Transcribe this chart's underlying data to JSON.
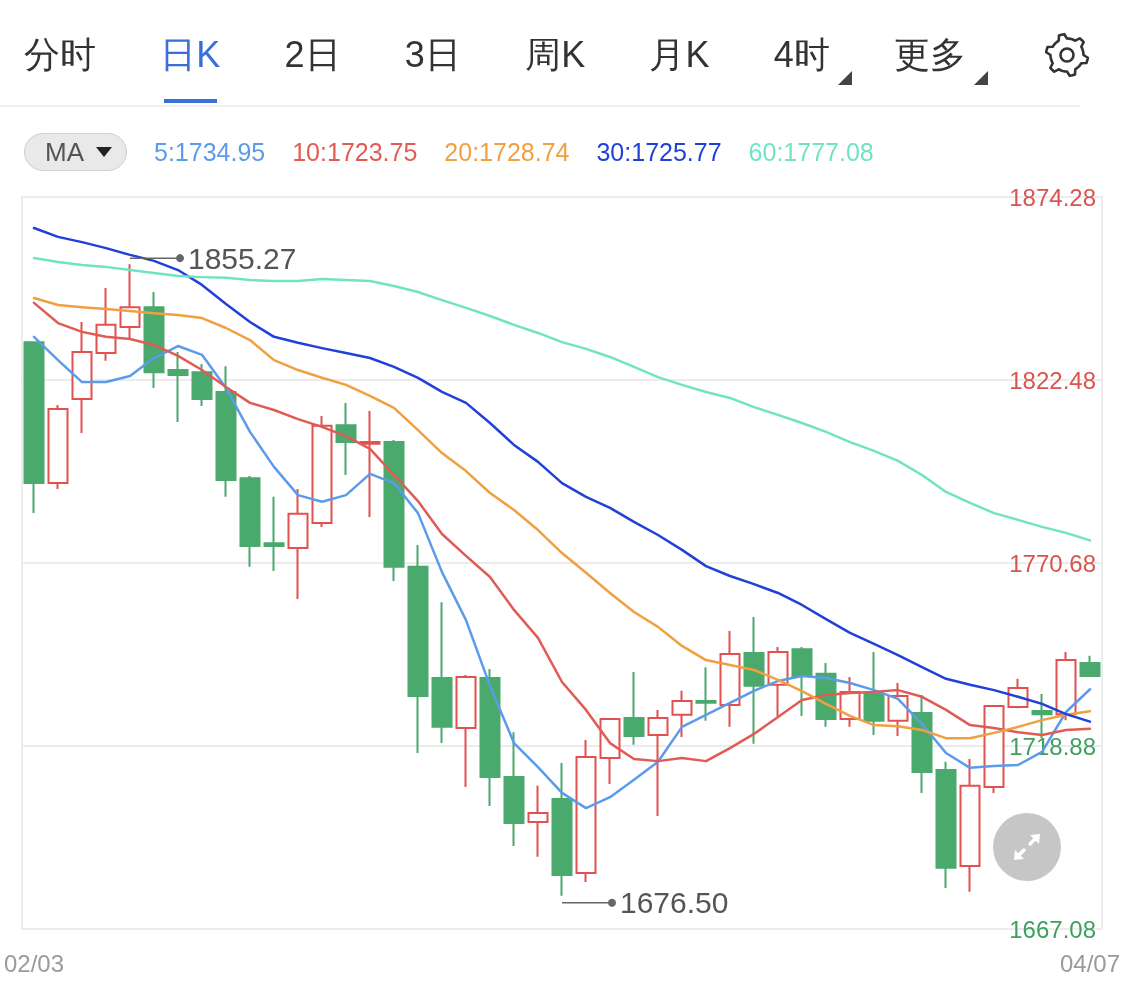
{
  "chart_data": {
    "type": "candlestick",
    "categories": [
      "02/03",
      null,
      null,
      null,
      null,
      null,
      null,
      null,
      null,
      null,
      null,
      null,
      null,
      null,
      null,
      null,
      null,
      null,
      null,
      null,
      null,
      null,
      null,
      null,
      null,
      null,
      null,
      null,
      null,
      null,
      null,
      null,
      null,
      null,
      null,
      null,
      null,
      null,
      null,
      null,
      null,
      null,
      null,
      null,
      "04/07"
    ],
    "ohlc": [
      [
        1833.2,
        1833.2,
        1784.8,
        1793.3
      ],
      [
        1793.3,
        1815.4,
        1791.6,
        1814.3
      ],
      [
        1817.1,
        1838.9,
        1807.5,
        1830.4
      ],
      [
        1830.1,
        1848.5,
        1827.9,
        1838.1
      ],
      [
        1837.5,
        1855.27,
        1834.4,
        1843.1
      ],
      [
        1843.1,
        1847.4,
        1820.2,
        1824.7
      ],
      [
        1825.3,
        1830.4,
        1810.6,
        1823.9
      ],
      [
        1824.7,
        1827.0,
        1815.1,
        1817.1
      ],
      [
        1819.1,
        1826.4,
        1789.4,
        1794.2
      ],
      [
        1794.7,
        1795.3,
        1769.6,
        1775.5
      ],
      [
        1776.3,
        1789.4,
        1768.4,
        1775.5
      ],
      [
        1774.9,
        1791.6,
        1760.5,
        1784.6
      ],
      [
        1782.0,
        1812.3,
        1780.9,
        1809.5
      ],
      [
        1809.7,
        1816.0,
        1795.6,
        1804.9
      ],
      [
        1804.4,
        1813.7,
        1783.7,
        1804.9
      ],
      [
        1804.9,
        1805.5,
        1765.6,
        1769.6
      ],
      [
        1769.6,
        1775.8,
        1716.9,
        1733.0
      ],
      [
        1738.1,
        1759.6,
        1719.7,
        1724.3
      ],
      [
        1724.0,
        1739.0,
        1707.3,
        1738.4
      ],
      [
        1738.1,
        1740.7,
        1701.9,
        1710.1
      ],
      [
        1710.1,
        1722.8,
        1690.6,
        1697.1
      ],
      [
        1697.4,
        1707.6,
        1687.5,
        1699.9
      ],
      [
        1703.9,
        1714.1,
        1676.5,
        1682.4
      ],
      [
        1682.9,
        1720.6,
        1680.4,
        1715.8
      ],
      [
        1715.5,
        1726.8,
        1708.1,
        1726.5
      ],
      [
        1726.8,
        1739.8,
        1719.2,
        1721.7
      ],
      [
        1722.0,
        1729.1,
        1699.1,
        1726.8
      ],
      [
        1727.7,
        1734.5,
        1721.4,
        1731.6
      ],
      [
        1731.6,
        1741.2,
        1726.0,
        1731.1
      ],
      [
        1730.5,
        1751.4,
        1724.3,
        1744.9
      ],
      [
        1745.2,
        1755.4,
        1719.5,
        1735.9
      ],
      [
        1736.2,
        1746.9,
        1727.4,
        1745.5
      ],
      [
        1746.3,
        1746.9,
        1727.4,
        1738.7
      ],
      [
        1739.3,
        1742.4,
        1724.3,
        1726.5
      ],
      [
        1726.5,
        1738.4,
        1724.3,
        1734.2
      ],
      [
        1733.6,
        1745.5,
        1722.0,
        1726.0
      ],
      [
        1726.0,
        1736.7,
        1721.7,
        1733.0
      ],
      [
        1728.2,
        1733.3,
        1705.6,
        1711.5
      ],
      [
        1712.1,
        1714.4,
        1678.7,
        1684.4
      ],
      [
        1684.9,
        1715.2,
        1677.6,
        1707.6
      ],
      [
        1707.3,
        1730.5,
        1705.6,
        1730.2
      ],
      [
        1729.9,
        1737.9,
        1729.6,
        1735.3
      ],
      [
        1728.8,
        1733.6,
        1721.1,
        1727.9
      ],
      [
        1727.9,
        1745.5,
        1726.2,
        1743.2
      ],
      [
        1742.4,
        1744.4,
        1738.4,
        1738.7
      ]
    ],
    "colors": [
      "#4aa96c",
      "#e0514f",
      "#e0514f",
      "#e0514f",
      "#e0514f",
      "#4aa96c",
      "#4aa96c",
      "#4aa96c",
      "#4aa96c",
      "#4aa96c",
      "#4aa96c",
      "#e0514f",
      "#e0514f",
      "#4aa96c",
      "#e0514f",
      "#4aa96c",
      "#4aa96c",
      "#4aa96c",
      "#e0514f",
      "#4aa96c",
      "#4aa96c",
      "#e0514f",
      "#4aa96c",
      "#e0514f",
      "#e0514f",
      "#4aa96c",
      "#e0514f",
      "#e0514f",
      "#4aa96c",
      "#e0514f",
      "#4aa96c",
      "#e0514f",
      "#4aa96c",
      "#4aa96c",
      "#e0514f",
      "#4aa96c",
      "#e0514f",
      "#4aa96c",
      "#4aa96c",
      "#e0514f",
      "#e0514f",
      "#e0514f",
      "#4aa96c",
      "#e0514f",
      "#4aa96c"
    ],
    "series": [
      {
        "type": "line",
        "name": "5:1734.95",
        "color": "#5b9bea",
        "values": [
          1834.7,
          1828.1,
          1821.9,
          1821.9,
          1823.6,
          1828.7,
          1832.1,
          1829.6,
          1820.2,
          1807.8,
          1797.9,
          1789.9,
          1788.0,
          1789.9,
          1795.9,
          1793.3,
          1784.8,
          1768.1,
          1754.5,
          1735.9,
          1719.7,
          1712.9,
          1705.6,
          1701.3,
          1704.4,
          1709.3,
          1714.4,
          1724.3,
          1727.7,
          1731.1,
          1734.5,
          1737.3,
          1738.7,
          1738.1,
          1736.7,
          1734.7,
          1732.2,
          1725.1,
          1716.9,
          1712.7,
          1713.2,
          1713.5,
          1717.2,
          1728.5,
          1734.95
        ]
      },
      {
        "type": "line",
        "name": "10:1723.75",
        "color": "#e15b55",
        "values": [
          1844.3,
          1838.6,
          1836.1,
          1834.7,
          1834.1,
          1832.4,
          1829.3,
          1825.3,
          1820.5,
          1816.0,
          1814.0,
          1811.4,
          1809.2,
          1806.6,
          1803.0,
          1795.6,
          1788.2,
          1778.9,
          1772.7,
          1766.7,
          1757.4,
          1749.5,
          1737.0,
          1729.1,
          1719.7,
          1715.2,
          1714.6,
          1715.5,
          1714.6,
          1718.3,
          1722.3,
          1727.1,
          1731.9,
          1733.3,
          1733.9,
          1734.2,
          1734.7,
          1732.8,
          1729.1,
          1724.8,
          1724.0,
          1722.8,
          1722.0,
          1723.4,
          1723.75
        ]
      },
      {
        "type": "line",
        "name": "20:1728.74",
        "color": "#f0a040",
        "values": [
          1845.7,
          1843.7,
          1843.1,
          1842.6,
          1842.0,
          1841.4,
          1840.9,
          1840.0,
          1837.2,
          1833.8,
          1828.1,
          1825.3,
          1823.1,
          1821.1,
          1818.0,
          1814.6,
          1808.3,
          1801.8,
          1796.7,
          1790.5,
          1785.7,
          1780.0,
          1773.5,
          1767.9,
          1762.2,
          1756.8,
          1752.6,
          1747.2,
          1743.2,
          1741.8,
          1740.4,
          1737.6,
          1734.4,
          1730.8,
          1727.4,
          1724.8,
          1724.5,
          1723.4,
          1721.1,
          1721.1,
          1722.6,
          1724.3,
          1726.2,
          1727.7,
          1728.74
        ]
      },
      {
        "type": "line",
        "name": "30:1725.77",
        "color": "#2140d8",
        "values": [
          1865.5,
          1863.0,
          1861.5,
          1859.8,
          1857.9,
          1856.2,
          1853.6,
          1849.4,
          1844.0,
          1838.9,
          1834.7,
          1833.0,
          1831.5,
          1830.1,
          1828.7,
          1826.2,
          1823.1,
          1819.1,
          1816.0,
          1810.3,
          1804.1,
          1799.3,
          1793.3,
          1789.4,
          1786.3,
          1782.3,
          1778.6,
          1774.4,
          1769.8,
          1767.0,
          1764.7,
          1762.2,
          1758.8,
          1754.8,
          1750.9,
          1747.8,
          1744.6,
          1741.2,
          1737.9,
          1736.2,
          1734.7,
          1732.8,
          1730.8,
          1727.9,
          1725.77
        ]
      },
      {
        "type": "line",
        "name": "60:1777.08",
        "color": "#71e3c3",
        "values": [
          1857.0,
          1855.9,
          1855.0,
          1854.5,
          1853.6,
          1852.8,
          1851.9,
          1851.6,
          1851.4,
          1850.8,
          1850.5,
          1850.5,
          1851.1,
          1850.8,
          1850.5,
          1849.1,
          1847.4,
          1845.1,
          1842.9,
          1840.6,
          1838.1,
          1835.8,
          1833.2,
          1831.3,
          1829.0,
          1826.2,
          1823.3,
          1821.1,
          1819.1,
          1817.4,
          1814.8,
          1812.6,
          1810.3,
          1807.8,
          1804.9,
          1802.4,
          1799.6,
          1795.6,
          1790.8,
          1787.7,
          1784.8,
          1782.9,
          1780.9,
          1779.2,
          1777.08
        ]
      }
    ],
    "ylim": [
      1667.08,
      1874.28
    ],
    "yticks": [
      1667.08,
      1718.88,
      1770.68,
      1822.48,
      1874.28
    ],
    "grid": "y",
    "legend": "top left",
    "legend_title": "MA",
    "marker": "none",
    "line_style": "solid",
    "annotations": [
      "分时",
      "日K",
      "2日",
      "3日",
      "周K",
      "月K",
      "4时",
      "更多",
      "1855.27",
      "1676.50"
    ]
  }
}
